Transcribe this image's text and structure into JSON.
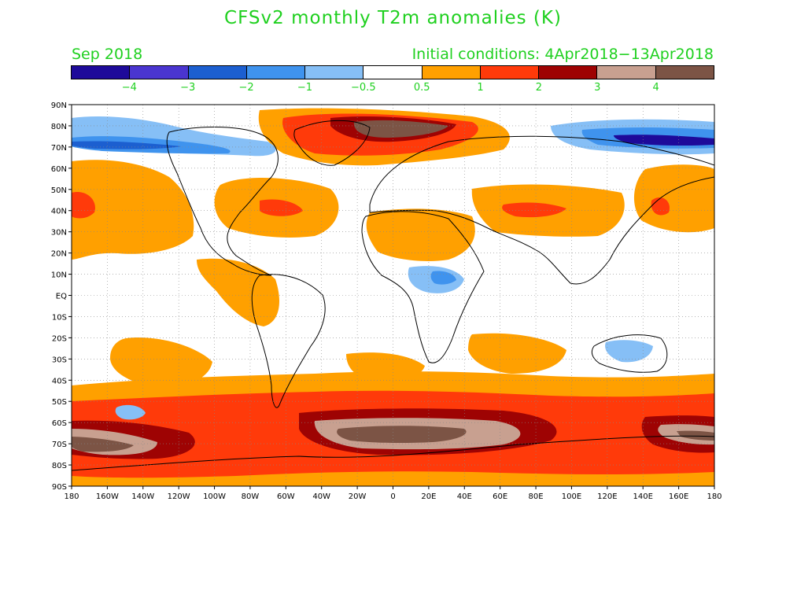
{
  "title": "CFSv2 monthly T2m anomalies (K)",
  "period": "Sep 2018",
  "initial_conditions": "Initial conditions: 4Apr2018−13Apr2018",
  "colorbar": {
    "colors": [
      "#1e0a9a",
      "#4a35d0",
      "#1c5fd0",
      "#3f93ee",
      "#86bff6",
      "#ffffff",
      "#ffa000",
      "#ff3a0a",
      "#9e0303",
      "#c8a090",
      "#7c5445"
    ],
    "labels": [
      "−4",
      "−3",
      "−2",
      "−1",
      "−0.5",
      "0.5",
      "1",
      "2",
      "3",
      "4"
    ]
  },
  "map": {
    "lat_labels": [
      "90N",
      "80N",
      "70N",
      "60N",
      "50N",
      "40N",
      "30N",
      "20N",
      "10N",
      "EQ",
      "10S",
      "20S",
      "30S",
      "40S",
      "50S",
      "60S",
      "70S",
      "80S",
      "90S"
    ],
    "lon_labels": [
      "180",
      "160W",
      "140W",
      "120W",
      "100W",
      "80W",
      "60W",
      "40W",
      "20W",
      "0",
      "20E",
      "40E",
      "60E",
      "80E",
      "100E",
      "120E",
      "140E",
      "160E",
      "180"
    ]
  }
}
